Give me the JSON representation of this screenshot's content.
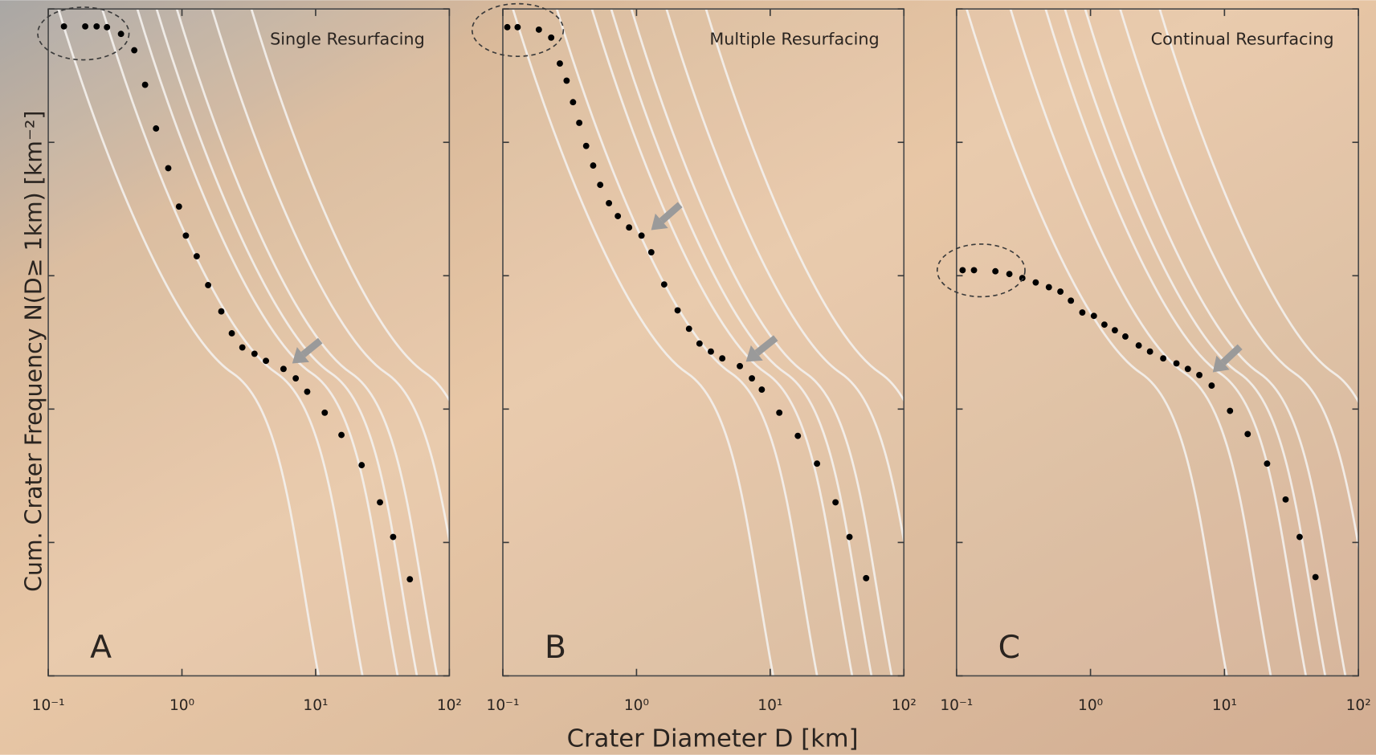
{
  "chart_data": [
    {
      "type": "scatter",
      "title": "Single Resurfacing",
      "panel_label": "A",
      "ylabel": "Cum. Crater Frequency N(D≥ 1km) [km⁻²]",
      "log_x": true,
      "log_y": true,
      "color": "#000000",
      "xlim": [
        0.1,
        100
      ],
      "ylim": [
        1e-05,
        1
      ],
      "xticks": [
        {
          "value": 0.1,
          "label": "10⁻¹"
        },
        {
          "value": 1,
          "label": "10⁰"
        },
        {
          "value": 10,
          "label": "10¹"
        },
        {
          "value": 100,
          "label": "10²"
        }
      ],
      "yticks": [
        1e-05,
        0.0001,
        0.001,
        0.01,
        0.1,
        1
      ],
      "x": [
        0.131,
        0.189,
        0.23,
        0.275,
        0.35,
        0.44,
        0.53,
        0.64,
        0.79,
        0.95,
        1.07,
        1.29,
        1.57,
        1.97,
        2.36,
        2.83,
        3.49,
        4.25,
        5.75,
        7.1,
        8.65,
        11.7,
        15.6,
        22.1,
        30.3,
        38,
        50.7
      ],
      "y": [
        0.74,
        0.74,
        0.74,
        0.73,
        0.65,
        0.49,
        0.27,
        0.127,
        0.064,
        0.033,
        0.02,
        0.014,
        0.0085,
        0.0054,
        0.0037,
        0.0029,
        0.0026,
        0.0023,
        0.002,
        0.0017,
        0.00135,
        0.00094,
        0.00064,
        0.00038,
        0.0002,
        0.00011,
        5.3e-05
      ]
    },
    {
      "type": "scatter",
      "title": "Multiple Resurfacing",
      "panel_label": "B",
      "xlabel": "Crater Diameter D [km]",
      "log_x": true,
      "log_y": true,
      "color": "#000000",
      "xlim": [
        0.1,
        100
      ],
      "ylim": [
        1e-05,
        1
      ],
      "xticks": [
        {
          "value": 0.1,
          "label": "10⁻¹"
        },
        {
          "value": 1,
          "label": "10⁰"
        },
        {
          "value": 10,
          "label": "10¹"
        },
        {
          "value": 100,
          "label": "10²"
        }
      ],
      "yticks": [
        1e-05,
        0.0001,
        0.001,
        0.01,
        0.1,
        1
      ],
      "x": [
        0.108,
        0.129,
        0.186,
        0.23,
        0.267,
        0.3,
        0.335,
        0.373,
        0.42,
        0.474,
        0.535,
        0.622,
        0.725,
        0.88,
        1.09,
        1.29,
        1.61,
        2.03,
        2.47,
        2.96,
        3.6,
        4.38,
        5.93,
        7.3,
        8.65,
        11.7,
        16.1,
        22.4,
        30.8,
        39.2,
        52.2
      ],
      "y": [
        0.73,
        0.73,
        0.7,
        0.61,
        0.39,
        0.29,
        0.2,
        0.14,
        0.094,
        0.067,
        0.048,
        0.035,
        0.028,
        0.023,
        0.02,
        0.015,
        0.0086,
        0.0055,
        0.004,
        0.0031,
        0.0027,
        0.0024,
        0.0021,
        0.0017,
        0.0014,
        0.00094,
        0.00063,
        0.00039,
        0.0002,
        0.00011,
        5.4e-05
      ]
    },
    {
      "type": "scatter",
      "title": "Continual Resurfacing",
      "panel_label": "C",
      "log_x": true,
      "log_y": true,
      "color": "#000000",
      "xlim": [
        0.1,
        100
      ],
      "ylim": [
        1e-05,
        1
      ],
      "xticks": [
        {
          "value": 0.1,
          "label": "10⁻¹"
        },
        {
          "value": 1,
          "label": "10⁰"
        },
        {
          "value": 10,
          "label": "10¹"
        },
        {
          "value": 100,
          "label": "10²"
        }
      ],
      "yticks": [
        1e-05,
        0.0001,
        0.001,
        0.01,
        0.1,
        1
      ],
      "x": [
        0.111,
        0.135,
        0.195,
        0.248,
        0.31,
        0.39,
        0.489,
        0.596,
        0.714,
        0.869,
        1.06,
        1.27,
        1.52,
        1.82,
        2.29,
        2.78,
        3.49,
        4.38,
        5.33,
        6.49,
        8.02,
        11,
        14.9,
        20.8,
        28.6,
        36.4,
        47.8
      ],
      "y": [
        0.011,
        0.011,
        0.0108,
        0.0103,
        0.0096,
        0.0089,
        0.0082,
        0.0076,
        0.0065,
        0.0053,
        0.005,
        0.0043,
        0.0039,
        0.0035,
        0.003,
        0.0027,
        0.0024,
        0.0022,
        0.002,
        0.0018,
        0.0015,
        0.00097,
        0.00065,
        0.00039,
        0.00021,
        0.00011,
        5.5e-05
      ]
    }
  ]
}
